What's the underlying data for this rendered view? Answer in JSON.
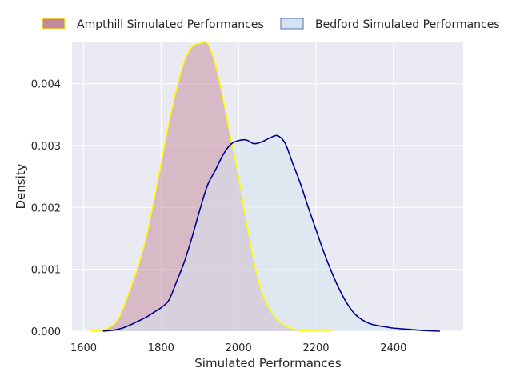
{
  "chart_data": {
    "type": "area",
    "title": "",
    "xlabel": "Simulated Performances",
    "ylabel": "Density",
    "xlim": [
      1570,
      2580
    ],
    "ylim": [
      0,
      0.00468
    ],
    "xticks": [
      1600,
      1800,
      2000,
      2200,
      2400
    ],
    "xtick_labels": [
      "1600",
      "1800",
      "2000",
      "2200",
      "2400"
    ],
    "yticks": [
      0.0,
      0.001,
      0.002,
      0.003,
      0.004
    ],
    "ytick_labels": [
      "0.000",
      "0.001",
      "0.002",
      "0.003",
      "0.004"
    ],
    "grid": true,
    "legend_position": "top",
    "background_color": "#eaeaf2",
    "series": [
      {
        "name": "Ampthill Simulated Performances",
        "fill": "#c48a99",
        "line": "#ffff00",
        "x": [
          1617,
          1650,
          1680,
          1700,
          1720,
          1740,
          1760,
          1780,
          1800,
          1820,
          1840,
          1860,
          1880,
          1900,
          1920,
          1940,
          1960,
          1980,
          2000,
          2020,
          2040,
          2060,
          2080,
          2100,
          2120,
          2140,
          2160,
          2180,
          2200,
          2220,
          2240
        ],
        "y": [
          0.0,
          2e-05,
          0.00012,
          0.00034,
          0.00068,
          0.00104,
          0.00148,
          0.00207,
          0.00272,
          0.00337,
          0.00392,
          0.00437,
          0.0046,
          0.00465,
          0.00465,
          0.00432,
          0.00376,
          0.00312,
          0.0025,
          0.00178,
          0.00112,
          0.00064,
          0.00036,
          0.00019,
          9e-05,
          4e-05,
          1e-05,
          0.0,
          0.0,
          0.0,
          0.0
        ]
      },
      {
        "name": "Bedford Simulated Performances",
        "fill": "#d5e4f0",
        "line": "#00008b",
        "x": [
          1650,
          1680,
          1700,
          1720,
          1740,
          1760,
          1780,
          1800,
          1820,
          1840,
          1860,
          1880,
          1900,
          1920,
          1940,
          1960,
          1980,
          2000,
          2020,
          2040,
          2060,
          2080,
          2100,
          2120,
          2140,
          2160,
          2180,
          2200,
          2220,
          2240,
          2260,
          2280,
          2300,
          2320,
          2340,
          2360,
          2380,
          2400,
          2440,
          2480,
          2520
        ],
        "y": [
          0.0,
          2e-05,
          5e-05,
          0.0001,
          0.00016,
          0.00022,
          0.0003,
          0.00038,
          0.0005,
          0.0008,
          0.00112,
          0.00152,
          0.00196,
          0.00236,
          0.0026,
          0.00285,
          0.00302,
          0.00308,
          0.00309,
          0.00303,
          0.00306,
          0.00312,
          0.00316,
          0.00304,
          0.00271,
          0.00238,
          0.002,
          0.00164,
          0.00128,
          0.00096,
          0.00068,
          0.00045,
          0.00028,
          0.00018,
          0.00012,
          9e-05,
          7e-05,
          5e-05,
          3e-05,
          1e-05,
          0.0
        ]
      }
    ]
  }
}
